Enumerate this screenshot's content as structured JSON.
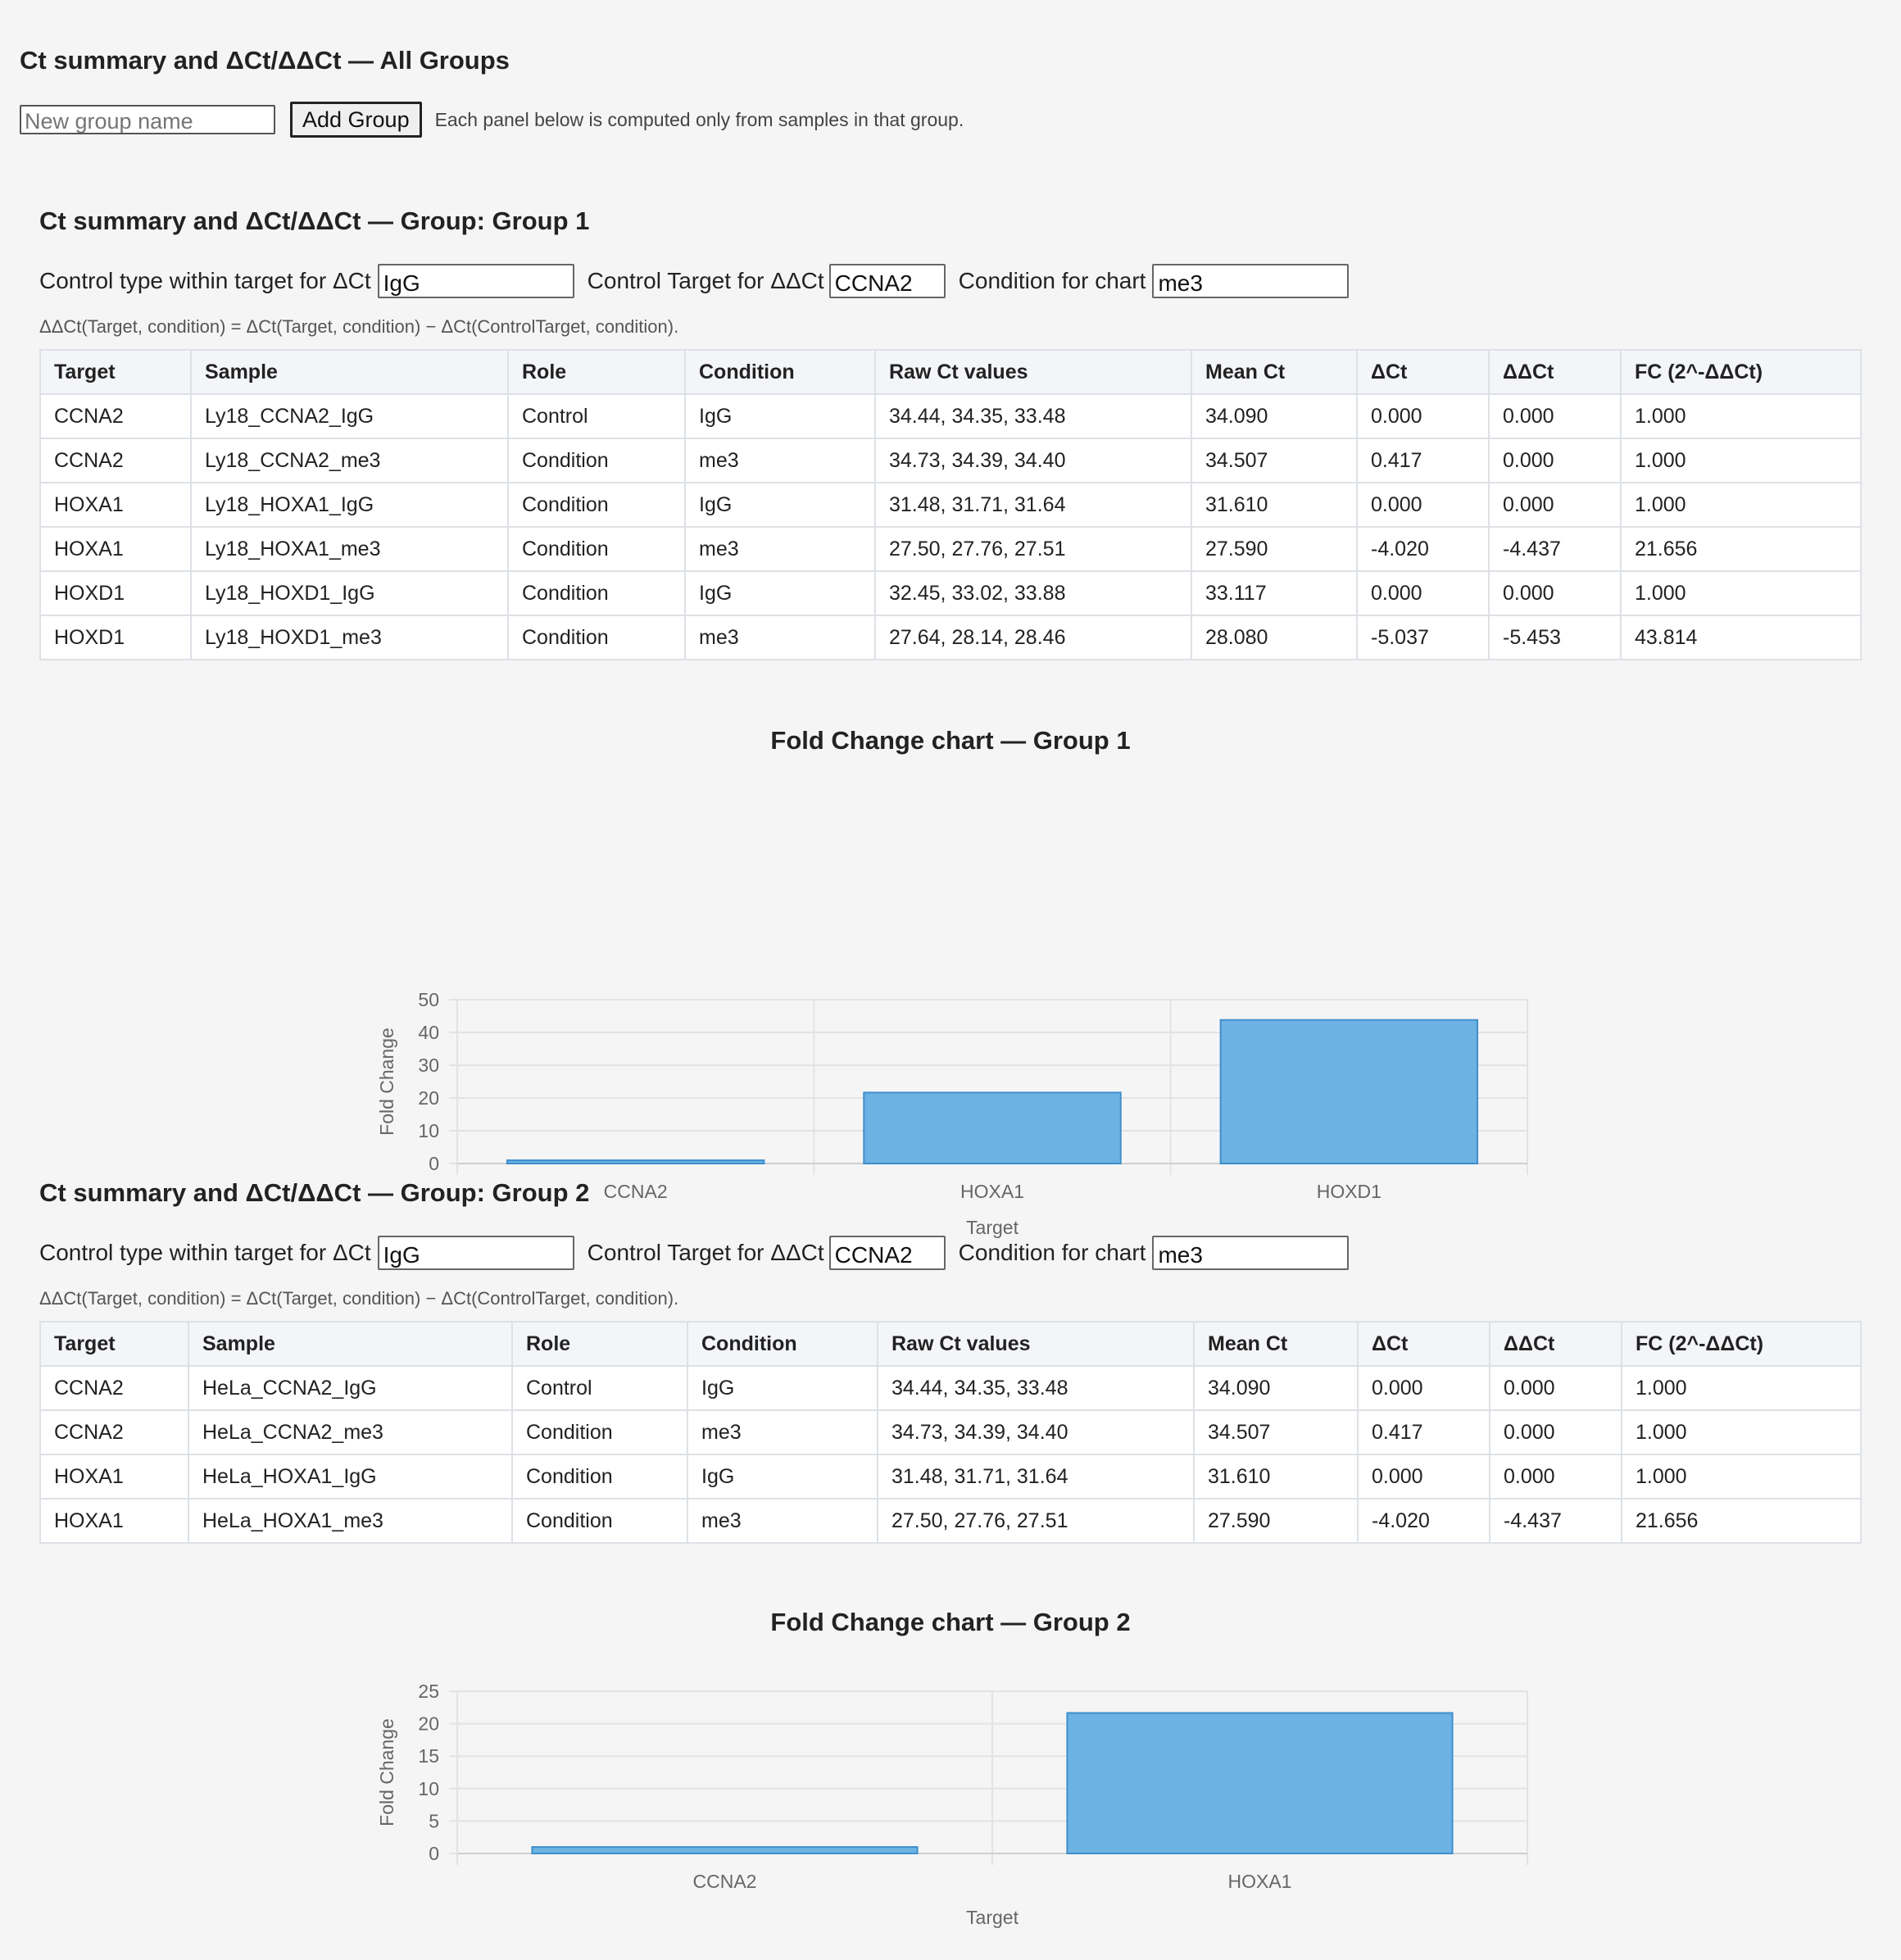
{
  "page": {
    "title": "Ct summary and ΔCt/ΔΔCt — All Groups",
    "new_group_placeholder": "New group name",
    "add_group_label": "Add Group",
    "hint": "Each panel below is computed only from samples in that group."
  },
  "table_headers": [
    "Target",
    "Sample",
    "Role",
    "Condition",
    "Raw Ct values",
    "Mean Ct",
    "ΔCt",
    "ΔΔCt",
    "FC (2^-ΔΔCt)"
  ],
  "groups": [
    {
      "title": "Ct summary and ΔCt/ΔΔCt — Group: Group 1",
      "control_type_label": "Control type within target for ΔCt",
      "control_type_value": "IgG",
      "control_target_label": "Control Target for ΔΔCt",
      "control_target_value": "CCNA2",
      "condition_label": "Condition for chart",
      "condition_value": "me3",
      "formula": "ΔΔCt(Target, condition) = ΔCt(Target, condition) − ΔCt(ControlTarget, condition).",
      "rows": [
        [
          "CCNA2",
          "Ly18_CCNA2_IgG",
          "Control",
          "IgG",
          "34.44, 34.35, 33.48",
          "34.090",
          "0.000",
          "0.000",
          "1.000"
        ],
        [
          "CCNA2",
          "Ly18_CCNA2_me3",
          "Condition",
          "me3",
          "34.73, 34.39, 34.40",
          "34.507",
          "0.417",
          "0.000",
          "1.000"
        ],
        [
          "HOXA1",
          "Ly18_HOXA1_IgG",
          "Condition",
          "IgG",
          "31.48, 31.71, 31.64",
          "31.610",
          "0.000",
          "0.000",
          "1.000"
        ],
        [
          "HOXA1",
          "Ly18_HOXA1_me3",
          "Condition",
          "me3",
          "27.50, 27.76, 27.51",
          "27.590",
          "-4.020",
          "-4.437",
          "21.656"
        ],
        [
          "HOXD1",
          "Ly18_HOXD1_IgG",
          "Condition",
          "IgG",
          "32.45, 33.02, 33.88",
          "33.117",
          "0.000",
          "0.000",
          "1.000"
        ],
        [
          "HOXD1",
          "Ly18_HOXD1_me3",
          "Condition",
          "me3",
          "27.64, 28.14, 28.46",
          "28.080",
          "-5.037",
          "-5.453",
          "43.814"
        ]
      ],
      "chart_title": "Fold Change chart — Group 1"
    },
    {
      "title": "Ct summary and ΔCt/ΔΔCt — Group: Group 2",
      "control_type_label": "Control type within target for ΔCt",
      "control_type_value": "IgG",
      "control_target_label": "Control Target for ΔΔCt",
      "control_target_value": "CCNA2",
      "condition_label": "Condition for chart",
      "condition_value": "me3",
      "formula": "ΔΔCt(Target, condition) = ΔCt(Target, condition) − ΔCt(ControlTarget, condition).",
      "rows": [
        [
          "CCNA2",
          "HeLa_CCNA2_IgG",
          "Control",
          "IgG",
          "34.44, 34.35, 33.48",
          "34.090",
          "0.000",
          "0.000",
          "1.000"
        ],
        [
          "CCNA2",
          "HeLa_CCNA2_me3",
          "Condition",
          "me3",
          "34.73, 34.39, 34.40",
          "34.507",
          "0.417",
          "0.000",
          "1.000"
        ],
        [
          "HOXA1",
          "HeLa_HOXA1_IgG",
          "Condition",
          "IgG",
          "31.48, 31.71, 31.64",
          "31.610",
          "0.000",
          "0.000",
          "1.000"
        ],
        [
          "HOXA1",
          "HeLa_HOXA1_me3",
          "Condition",
          "me3",
          "27.50, 27.76, 27.51",
          "27.590",
          "-4.020",
          "-4.437",
          "21.656"
        ]
      ],
      "chart_title": "Fold Change chart — Group 2"
    }
  ],
  "chart_data": [
    {
      "type": "bar",
      "title": "Fold Change chart — Group 1",
      "categories": [
        "CCNA2",
        "HOXA1",
        "HOXD1"
      ],
      "values": [
        1.0,
        21.656,
        43.814
      ],
      "xlabel": "Target",
      "ylabel": "Fold Change",
      "ylim": [
        0,
        50
      ],
      "yticks": [
        0,
        10,
        20,
        30,
        40,
        50
      ],
      "grid": true,
      "bar_color": "#6cb2e2",
      "bar_border": "#3f8fcc"
    },
    {
      "type": "bar",
      "title": "Fold Change chart — Group 2",
      "categories": [
        "CCNA2",
        "HOXA1"
      ],
      "values": [
        1.0,
        21.656
      ],
      "xlabel": "Target",
      "ylabel": "Fold Change",
      "ylim": [
        0,
        25
      ],
      "yticks": [
        0,
        5,
        10,
        15,
        20,
        25
      ],
      "grid": true,
      "bar_color": "#6cb2e2",
      "bar_border": "#3f8fcc"
    }
  ]
}
